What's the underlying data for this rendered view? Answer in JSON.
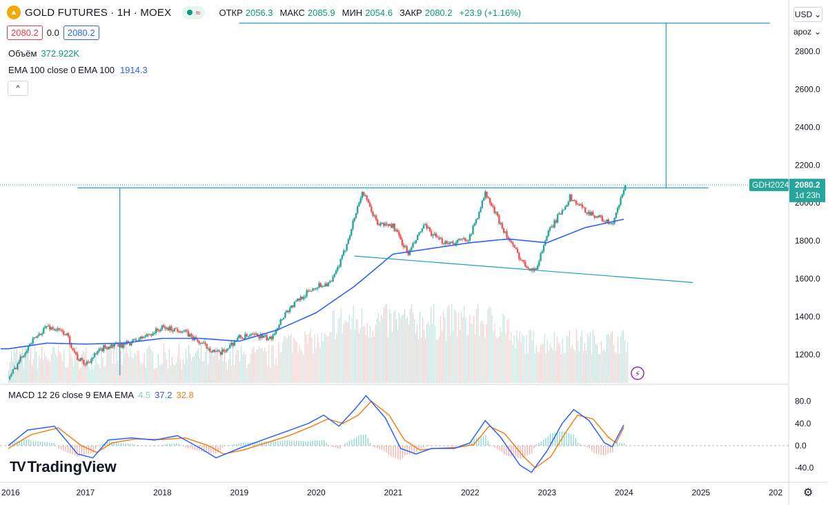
{
  "header": {
    "logo_glyph": "▲",
    "title": "GOLD FUTURES · 1H · MOEX",
    "status_glyph": "≈",
    "ohlc": [
      {
        "label": "ОТКР",
        "value": "2056.3"
      },
      {
        "label": "МАКС",
        "value": "2085.9"
      },
      {
        "label": "МИН",
        "value": "2054.6"
      },
      {
        "label": "ЗАКР",
        "value": "2080.2"
      }
    ],
    "change": "+23.9 (+1.16%)",
    "bid": "2080.2",
    "spread": "0.0",
    "ask": "2080.2"
  },
  "legend": {
    "volume_label": "Объём",
    "volume_value": "372.922K",
    "ema_label": "EMA 100 close 0 EMA 100",
    "ema_value": "1914.3",
    "collapse_glyph": "^",
    "macd_label": "MACD 12 26 close 9 EMA EMA",
    "macd_hist": "4.5",
    "macd_line": "37.2",
    "macd_signal": "32.8"
  },
  "right_controls": {
    "currency": "USD",
    "currency_chevron": "⌄",
    "scale_mode": "apoz",
    "scale_chevron": "⌄",
    "settings_glyph": "⚙"
  },
  "watermark": {
    "brand": "TradingView",
    "mark": "TV"
  },
  "price_tag": {
    "symbol": "GDH2024",
    "price": "2080.2",
    "countdown": "1d 23h"
  },
  "colors": {
    "up": "#26a69a",
    "down": "#ef5350",
    "ema": "#2962ff",
    "macd": "#2962ff",
    "signal": "#f57f17",
    "drawing": "#1e9fbf"
  },
  "chart_data": [
    {
      "type": "candlestick",
      "title": "GOLD FUTURES · 1H · MOEX",
      "x_ticks": [
        "2016",
        "2017",
        "2018",
        "2019",
        "2020",
        "2021",
        "2022",
        "2023",
        "2024",
        "2025",
        "202"
      ],
      "y_ticks": [
        "2800.0",
        "2600.0",
        "2400.0",
        "2200.0",
        "2000.0",
        "1800.0",
        "1600.0",
        "1400.0",
        "1200.0"
      ],
      "ylim": [
        1110,
        2950
      ],
      "xlim": [
        2016.0,
        2026.0
      ],
      "price_path": [
        [
          2016.0,
          1070
        ],
        [
          2016.25,
          1240
        ],
        [
          2016.5,
          1350
        ],
        [
          2016.75,
          1310
        ],
        [
          2016.9,
          1180
        ],
        [
          2017.0,
          1150
        ],
        [
          2017.25,
          1240
        ],
        [
          2017.5,
          1250
        ],
        [
          2017.75,
          1290
        ],
        [
          2018.0,
          1340
        ],
        [
          2018.25,
          1330
        ],
        [
          2018.5,
          1260
        ],
        [
          2018.75,
          1200
        ],
        [
          2019.0,
          1290
        ],
        [
          2019.25,
          1300
        ],
        [
          2019.4,
          1280
        ],
        [
          2019.6,
          1420
        ],
        [
          2019.8,
          1500
        ],
        [
          2020.0,
          1560
        ],
        [
          2020.2,
          1580
        ],
        [
          2020.35,
          1720
        ],
        [
          2020.6,
          2060
        ],
        [
          2020.8,
          1890
        ],
        [
          2021.0,
          1880
        ],
        [
          2021.2,
          1730
        ],
        [
          2021.4,
          1880
        ],
        [
          2021.6,
          1800
        ],
        [
          2021.8,
          1790
        ],
        [
          2022.0,
          1820
        ],
        [
          2022.2,
          2050
        ],
        [
          2022.5,
          1810
        ],
        [
          2022.7,
          1680
        ],
        [
          2022.85,
          1640
        ],
        [
          2023.0,
          1830
        ],
        [
          2023.3,
          2030
        ],
        [
          2023.5,
          1960
        ],
        [
          2023.7,
          1920
        ],
        [
          2023.85,
          1880
        ],
        [
          2023.95,
          2000
        ],
        [
          2024.0,
          2080
        ]
      ],
      "ema_path": [
        [
          2016.0,
          1230
        ],
        [
          2016.5,
          1260
        ],
        [
          2017.0,
          1255
        ],
        [
          2017.5,
          1260
        ],
        [
          2018.0,
          1285
        ],
        [
          2018.5,
          1285
        ],
        [
          2019.0,
          1270
        ],
        [
          2019.5,
          1330
        ],
        [
          2020.0,
          1420
        ],
        [
          2020.5,
          1560
        ],
        [
          2021.0,
          1730
        ],
        [
          2021.5,
          1760
        ],
        [
          2022.0,
          1790
        ],
        [
          2022.5,
          1810
        ],
        [
          2023.0,
          1790
        ],
        [
          2023.5,
          1870
        ],
        [
          2024.0,
          1914.3
        ]
      ],
      "drawings": {
        "resistance": {
          "x": [
            2016.9,
            2025.1
          ],
          "y": 2080
        },
        "projection_top": {
          "x": [
            2019.0,
            2025.9
          ],
          "y": 2950
        },
        "support": {
          "x": [
            2020.5,
            2024.9
          ],
          "y": [
            1720,
            1580
          ]
        },
        "measure_left_x": 2017.45,
        "measure_right_x": 2024.55
      }
    },
    {
      "type": "macd",
      "title": "MACD 12 26 close 9 EMA EMA",
      "y_ticks": [
        "80.0",
        "40.0",
        "0.0",
        "-40.0"
      ],
      "ylim": [
        -55,
        100
      ],
      "macd_path": [
        [
          2016.0,
          0
        ],
        [
          2016.25,
          28
        ],
        [
          2016.6,
          35
        ],
        [
          2016.9,
          -15
        ],
        [
          2017.1,
          -22
        ],
        [
          2017.3,
          10
        ],
        [
          2017.6,
          14
        ],
        [
          2017.9,
          10
        ],
        [
          2018.2,
          18
        ],
        [
          2018.5,
          -5
        ],
        [
          2018.7,
          -22
        ],
        [
          2019.0,
          -5
        ],
        [
          2019.3,
          10
        ],
        [
          2019.6,
          25
        ],
        [
          2019.9,
          40
        ],
        [
          2020.1,
          55
        ],
        [
          2020.3,
          35
        ],
        [
          2020.5,
          65
        ],
        [
          2020.65,
          90
        ],
        [
          2020.9,
          50
        ],
        [
          2021.1,
          -5
        ],
        [
          2021.3,
          -15
        ],
        [
          2021.5,
          -5
        ],
        [
          2021.8,
          -5
        ],
        [
          2022.0,
          5
        ],
        [
          2022.2,
          45
        ],
        [
          2022.4,
          15
        ],
        [
          2022.65,
          -35
        ],
        [
          2022.8,
          -48
        ],
        [
          2023.0,
          -10
        ],
        [
          2023.2,
          40
        ],
        [
          2023.35,
          65
        ],
        [
          2023.55,
          45
        ],
        [
          2023.75,
          5
        ],
        [
          2023.85,
          -2
        ],
        [
          2024.0,
          37.2
        ]
      ],
      "signal_path": [
        [
          2016.0,
          -5
        ],
        [
          2016.3,
          20
        ],
        [
          2016.65,
          32
        ],
        [
          2016.95,
          0
        ],
        [
          2017.15,
          -12
        ],
        [
          2017.35,
          5
        ],
        [
          2017.65,
          12
        ],
        [
          2018.0,
          11
        ],
        [
          2018.3,
          14
        ],
        [
          2018.6,
          0
        ],
        [
          2018.8,
          -15
        ],
        [
          2019.05,
          -8
        ],
        [
          2019.35,
          5
        ],
        [
          2019.65,
          18
        ],
        [
          2019.95,
          35
        ],
        [
          2020.15,
          48
        ],
        [
          2020.35,
          40
        ],
        [
          2020.55,
          55
        ],
        [
          2020.72,
          80
        ],
        [
          2020.95,
          55
        ],
        [
          2021.15,
          10
        ],
        [
          2021.35,
          -8
        ],
        [
          2021.55,
          -5
        ],
        [
          2021.85,
          -3
        ],
        [
          2022.05,
          2
        ],
        [
          2022.25,
          35
        ],
        [
          2022.45,
          22
        ],
        [
          2022.7,
          -20
        ],
        [
          2022.85,
          -40
        ],
        [
          2023.05,
          -20
        ],
        [
          2023.25,
          25
        ],
        [
          2023.4,
          55
        ],
        [
          2023.6,
          48
        ],
        [
          2023.8,
          15
        ],
        [
          2023.9,
          5
        ],
        [
          2024.0,
          32.8
        ]
      ]
    }
  ]
}
